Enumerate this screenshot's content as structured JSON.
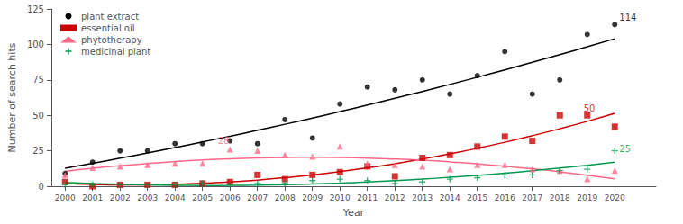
{
  "chart_data": {
    "type": "scatter",
    "xlabel": "Year",
    "ylabel": "Number of search hits",
    "x": [
      2000,
      2001,
      2002,
      2003,
      2004,
      2005,
      2006,
      2007,
      2008,
      2009,
      2010,
      2011,
      2012,
      2013,
      2014,
      2015,
      2016,
      2017,
      2018,
      2019,
      2020
    ],
    "series": [
      {
        "name": "plant extract",
        "color": "#000000",
        "marker": "circle",
        "values": [
          9,
          17,
          25,
          25,
          30,
          30,
          32,
          30,
          47,
          34,
          58,
          70,
          68,
          75,
          65,
          78,
          95,
          65,
          75,
          107,
          114
        ],
        "trend": [
          12.69,
          16.17,
          19.76,
          23.47,
          27.29,
          31.22,
          35.27,
          39.44,
          43.71,
          48.11,
          52.61,
          57.24,
          61.97,
          66.82,
          71.79,
          76.87,
          82.07,
          87.38,
          92.8,
          98.34,
          103.99
        ]
      },
      {
        "name": "essential oil",
        "color": "#cc0000",
        "marker": "square",
        "values": [
          3,
          0,
          1,
          1,
          1,
          2,
          3,
          8,
          5,
          8,
          10,
          14,
          7,
          20,
          22,
          28,
          35,
          32,
          50,
          50,
          42
        ],
        "trend": [
          1.88,
          1.25,
          0.95,
          0.98,
          1.33,
          2.01,
          3.02,
          4.35,
          6.01,
          7.99,
          10.31,
          12.94,
          15.91,
          19.2,
          22.81,
          26.75,
          31.02,
          35.62,
          40.54,
          45.78,
          51.36
        ]
      },
      {
        "name": "phytotherapy",
        "color": "#ff6688",
        "marker": "triangle",
        "values": [
          8,
          13,
          14,
          15,
          16,
          16,
          26,
          25,
          22,
          21,
          28,
          16,
          15,
          14,
          12,
          15,
          15,
          12,
          11,
          5,
          11
        ],
        "trend": [
          10.53,
          12.62,
          14.46,
          16.06,
          17.4,
          18.5,
          19.35,
          19.95,
          20.3,
          20.41,
          20.26,
          19.87,
          19.23,
          18.35,
          17.21,
          15.82,
          14.19,
          12.31,
          10.18,
          7.81,
          5.18
        ]
      },
      {
        "name": "medicinal plant",
        "color": "#00994d",
        "marker": "plus",
        "values": [
          1,
          1,
          1,
          1,
          1,
          2,
          1,
          2,
          2,
          4,
          5,
          4,
          2,
          3,
          5,
          6,
          8,
          8,
          11,
          12,
          25
        ],
        "trend": [
          2.67,
          1.95,
          1.37,
          0.94,
          0.67,
          0.55,
          0.58,
          0.76,
          1.1,
          1.58,
          2.22,
          3.01,
          3.95,
          5.04,
          6.28,
          7.68,
          9.23,
          10.93,
          12.78,
          14.78,
          16.93
        ]
      }
    ],
    "annotations": [
      {
        "text": "114",
        "x": 2020.1,
        "y": 116,
        "color": "#000000"
      },
      {
        "text": "50",
        "x": 2018.8,
        "y": 52,
        "color": "#cc0000"
      },
      {
        "text": "25",
        "x": 2020.1,
        "y": 23,
        "color": "#00994d"
      },
      {
        "text": "28",
        "x": 2005.5,
        "y": 29,
        "color": "#ff6688"
      }
    ],
    "xlim": [
      1999.5,
      2021.5
    ],
    "xticks": [
      2000,
      2001,
      2002,
      2003,
      2004,
      2005,
      2006,
      2007,
      2008,
      2009,
      2010,
      2011,
      2012,
      2013,
      2014,
      2015,
      2016,
      2017,
      2018,
      2019,
      2020
    ],
    "ylim": [
      0,
      125
    ],
    "yticks": [
      0,
      25,
      50,
      75,
      100,
      125
    ],
    "grid": false,
    "legend": "upper left"
  }
}
